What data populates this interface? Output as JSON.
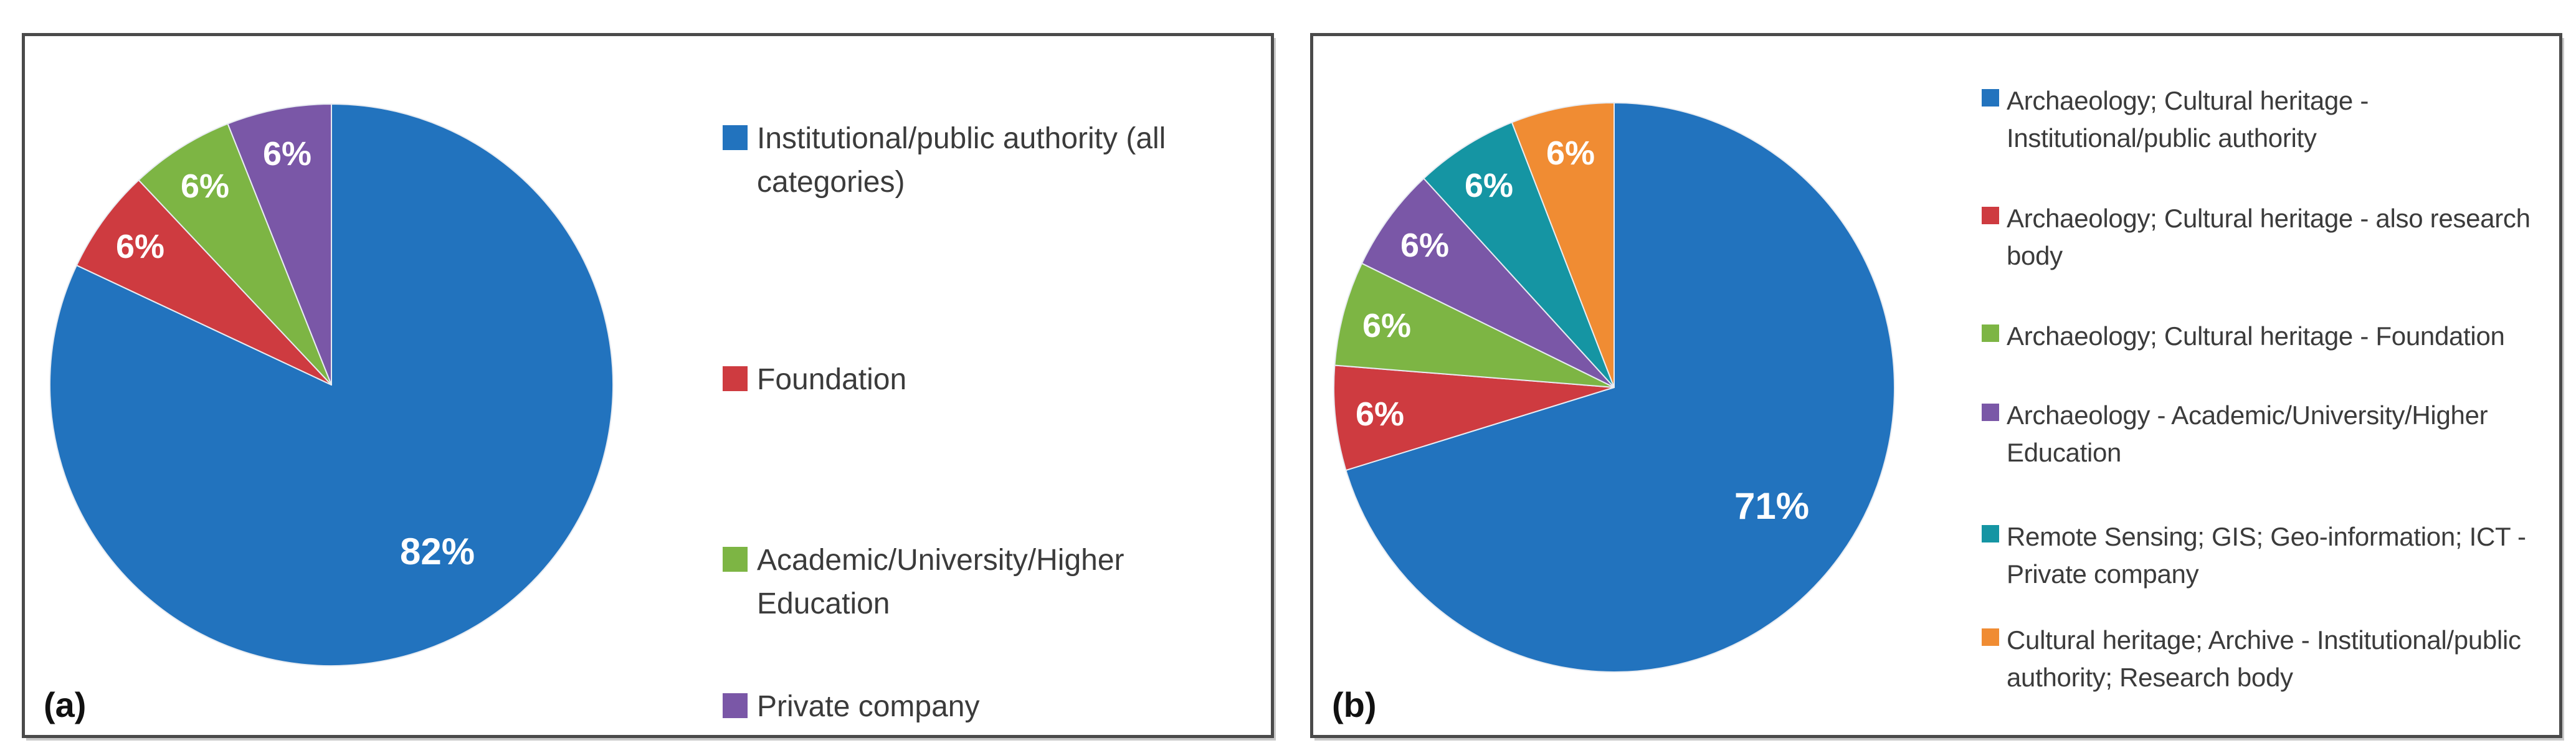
{
  "figure": {
    "panels": [
      {
        "label": "(a)"
      },
      {
        "label": "(b)"
      }
    ]
  },
  "chart_data": [
    {
      "type": "pie",
      "panel": "(a)",
      "title": "",
      "categories": [
        "Institutional/public authority (all categories)",
        "Foundation",
        "Academic/University/Higher Education",
        "Private company"
      ],
      "values": [
        82,
        6,
        6,
        6
      ],
      "slice_labels": [
        "82%",
        "6%",
        "6%",
        "6%"
      ],
      "colors": [
        "#2273BE",
        "#CE3B40",
        "#7DB544",
        "#7A57A7"
      ],
      "legend_position": "right",
      "start_angle": "top",
      "direction": "clockwise",
      "slice_label_color": "#FFFFFF"
    },
    {
      "type": "pie",
      "panel": "(b)",
      "title": "",
      "categories": [
        "Archaeology; Cultural heritage - Institutional/public authority",
        "Archaeology; Cultural heritage - also research body",
        "Archaeology; Cultural heritage - Foundation",
        "Archaeology - Academic/University/Higher Education",
        "Remote Sensing;  GIS; Geo-information; ICT - Private company",
        "Cultural heritage; Archive - Institutional/public authority;  Research body"
      ],
      "values": [
        71,
        6,
        6,
        6,
        6,
        6
      ],
      "slice_labels": [
        "71%",
        "6%",
        "6%",
        "6%",
        "6%",
        "6%"
      ],
      "colors": [
        "#2273BE",
        "#CE3B40",
        "#7DB544",
        "#7A57A7",
        "#1595A3",
        "#F08C33"
      ],
      "legend_position": "right",
      "start_angle": "top",
      "direction": "clockwise",
      "slice_label_color": "#FFFFFF"
    }
  ]
}
